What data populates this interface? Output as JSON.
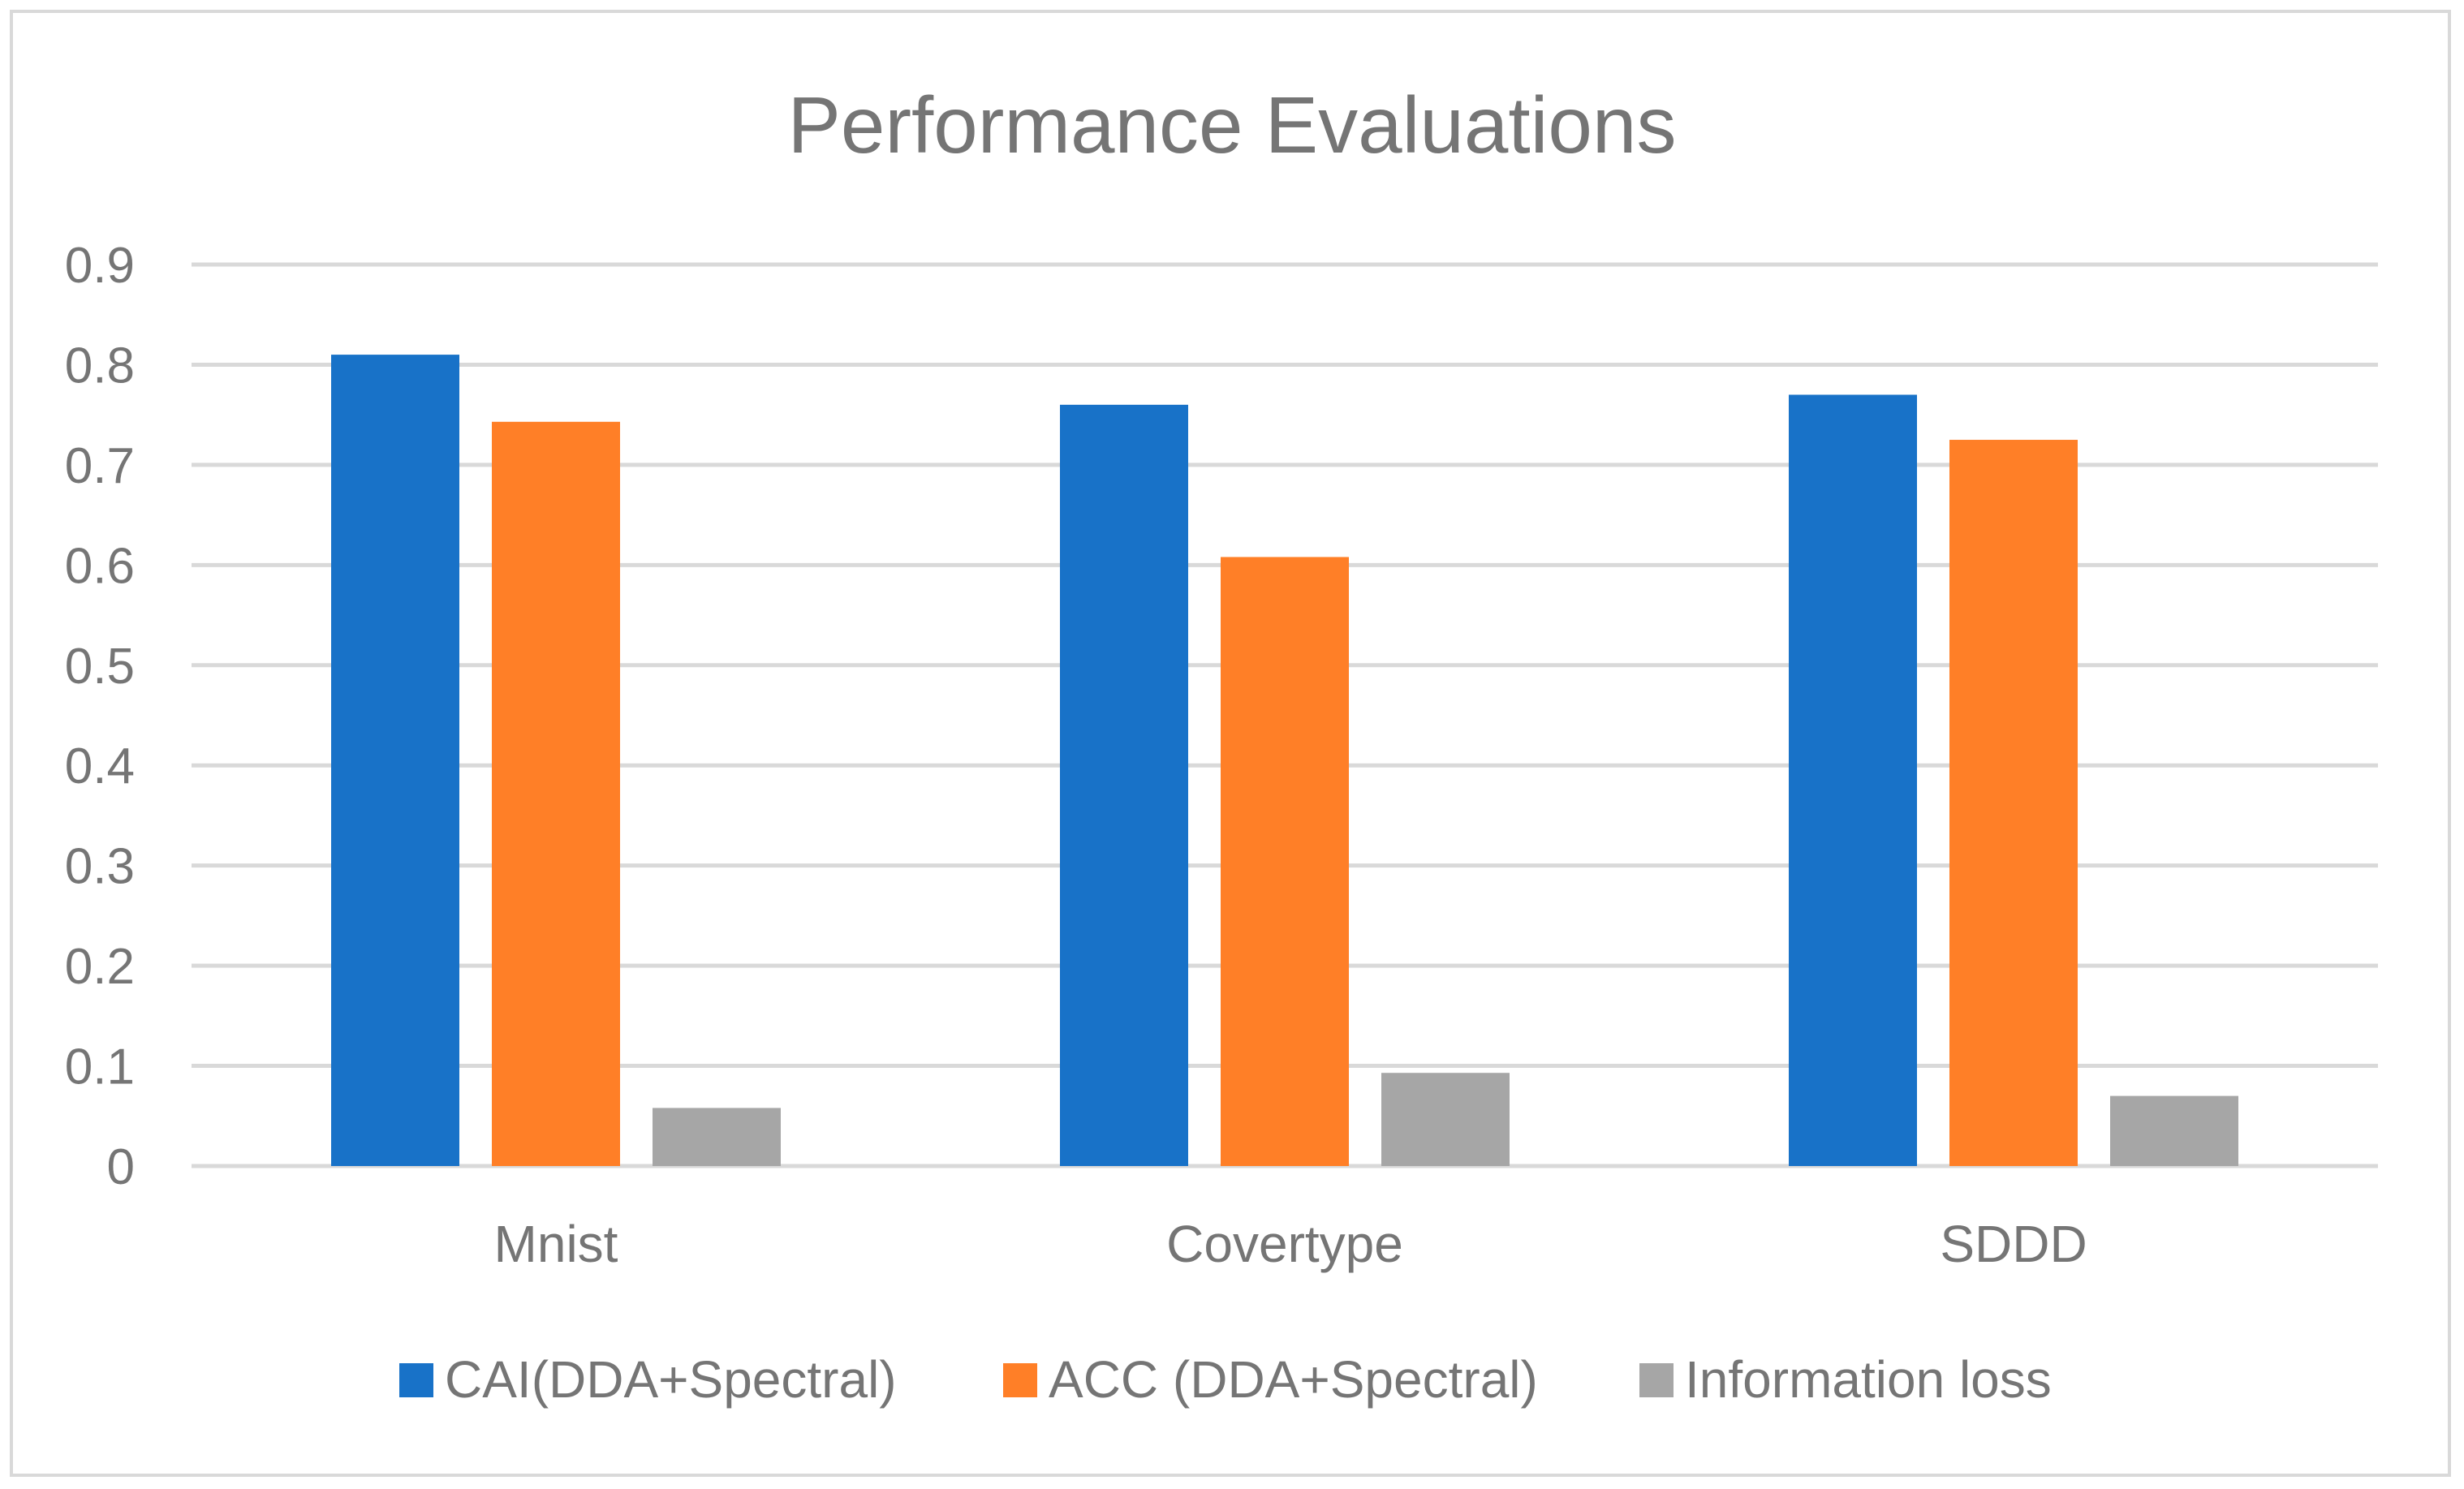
{
  "chart_data": {
    "type": "bar",
    "title": "Performance Evaluations",
    "xlabel": "",
    "ylabel": "",
    "ylim": [
      0,
      0.9
    ],
    "yticks": [
      0,
      0.1,
      0.2,
      0.3,
      0.4,
      0.5,
      0.6,
      0.7,
      0.8,
      0.9
    ],
    "ytick_labels": [
      "0",
      "0.1",
      "0.2",
      "0.3",
      "0.4",
      "0.5",
      "0.6",
      "0.7",
      "0.8",
      "0.9"
    ],
    "grid": true,
    "legend_position": "bottom",
    "categories": [
      "Mnist",
      "Covertype",
      "SDDD"
    ],
    "series": [
      {
        "name": "CAI(DDA+Spectral)",
        "color": "#1872C8",
        "values": [
          0.81,
          0.76,
          0.77
        ]
      },
      {
        "name": "ACC (DDA+Spectral)",
        "color": "#FF7F27",
        "values": [
          0.743,
          0.608,
          0.725
        ]
      },
      {
        "name": "Information loss",
        "color": "#A6A6A6",
        "values": [
          0.058,
          0.093,
          0.07
        ]
      }
    ]
  }
}
